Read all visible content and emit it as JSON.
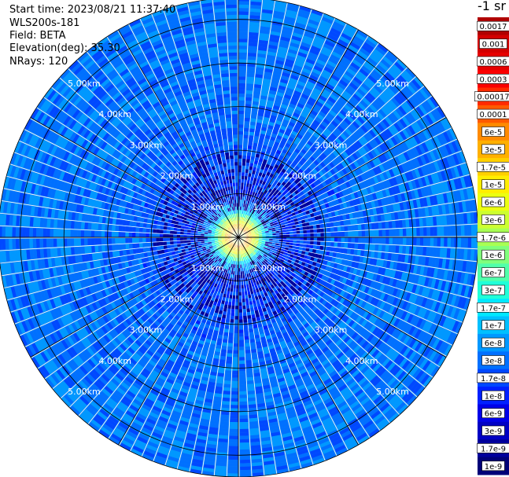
{
  "header": {
    "start_time": "Start time: 2023/08/21 11:37:40",
    "instrument": "WLS200s-181",
    "field": "Field: BETA",
    "elevation": "Elevation(deg): 35.30",
    "nrays": "NRays: 120"
  },
  "colorbar": {
    "unit": "-1 sr",
    "labels": [
      "0.0017",
      "0.001",
      "0.0006",
      "0.0003",
      "0.00017",
      "0.0001",
      "6e-5",
      "3e-5",
      "1.7e-5",
      "1e-5",
      "6e-6",
      "3e-6",
      "1.7e-6",
      "1e-6",
      "6e-7",
      "3e-7",
      "1.7e-7",
      "1e-7",
      "6e-8",
      "3e-8",
      "1.7e-8",
      "1e-8",
      "6e-9",
      "3e-9",
      "1.7e-9",
      "1e-9"
    ],
    "colors": [
      "#b00000",
      "#d20000",
      "#e60000",
      "#fa0000",
      "#ff2a00",
      "#ff5a00",
      "#ff8a00",
      "#ffb000",
      "#ffd000",
      "#ffee00",
      "#ecff10",
      "#ccff30",
      "#a8ff54",
      "#80ff7c",
      "#50ffaa",
      "#20ffd8",
      "#00e8ff",
      "#00c0ff",
      "#0098ff",
      "#0070ff",
      "#0048ff",
      "#0020ff",
      "#0000e8",
      "#0000c4",
      "#00009c",
      "#000078"
    ]
  },
  "chart_data": {
    "type": "heatmap",
    "projection": "polar (PPI scan)",
    "field": "BETA",
    "nrays": 120,
    "range_max_km": 5.5,
    "range_rings_km": [
      1,
      2,
      3,
      4,
      5
    ],
    "range_labels": [
      "1.00km",
      "2.00km",
      "3.00km",
      "4.00km",
      "5.00km"
    ],
    "spoke_step_deg": 30,
    "value_scale": "log",
    "value_range": [
      1e-09,
      0.0017
    ],
    "profile": [
      {
        "range_km": 0.0,
        "log10_beta": -7.6
      },
      {
        "range_km": 0.1,
        "log10_beta": -5.6
      },
      {
        "range_km": 0.2,
        "log10_beta": -4.4
      },
      {
        "range_km": 0.3,
        "log10_beta": -4.9
      },
      {
        "range_km": 0.4,
        "log10_beta": -5.6
      },
      {
        "range_km": 0.6,
        "log10_beta": -6.9
      },
      {
        "range_km": 1.0,
        "log10_beta": -7.8
      },
      {
        "range_km": 2.0,
        "log10_beta": -7.6
      },
      {
        "range_km": 3.0,
        "log10_beta": -7.45
      },
      {
        "range_km": 5.5,
        "log10_beta": -7.4
      }
    ]
  }
}
